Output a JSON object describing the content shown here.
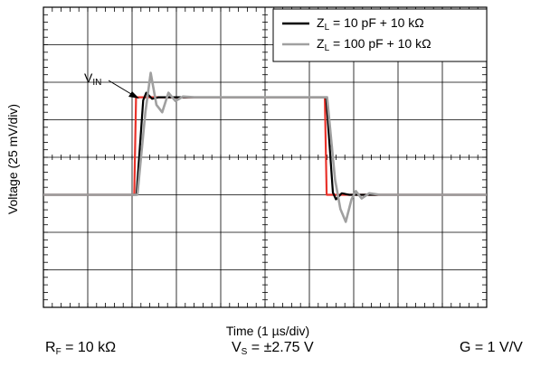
{
  "labels": {
    "ylabel": "Voltage (25 mV/div)",
    "xlabel": "Time (1 µs/div)",
    "rf": {
      "sym": "R",
      "sub": "F",
      "rest": " = 10 kΩ"
    },
    "vs": {
      "sym": "V",
      "sub": "S",
      "rest": " = ±2.75 V"
    },
    "g": "G = 1 V/V",
    "vin": {
      "sym": "V",
      "sub": "IN"
    },
    "legend": [
      {
        "sym": "Z",
        "sub": "L",
        "rest": " = 10 pF + 10 kΩ"
      },
      {
        "sym": "Z",
        "sub": "L",
        "rest": " = 100 pF + 10 kΩ"
      }
    ]
  },
  "chart_data": {
    "type": "line",
    "title": "",
    "xlabel": "Time (1 µs/div)",
    "ylabel": "Voltage (25 mV/div)",
    "xlim": [
      0,
      10
    ],
    "ylim": [
      -4,
      4
    ],
    "grid": true,
    "legend_position": "top-right",
    "series": [
      {
        "name": "VIN",
        "color": "#e8322a",
        "points": [
          [
            0,
            -1
          ],
          [
            2.05,
            -1
          ],
          [
            2.09,
            1.6
          ],
          [
            6.35,
            1.6
          ],
          [
            6.39,
            -1
          ],
          [
            10,
            -1
          ]
        ]
      },
      {
        "name": "ZL = 10 pF + 10 kΩ",
        "color": "#000000",
        "points": [
          [
            0,
            -1
          ],
          [
            2.1,
            -1
          ],
          [
            2.25,
            1.52
          ],
          [
            2.32,
            1.72
          ],
          [
            2.45,
            1.56
          ],
          [
            2.6,
            1.6
          ],
          [
            2.8,
            1.6
          ],
          [
            6.38,
            1.6
          ],
          [
            6.53,
            -0.94
          ],
          [
            6.6,
            -1.12
          ],
          [
            6.73,
            -0.96
          ],
          [
            6.9,
            -1.0
          ],
          [
            10,
            -1
          ]
        ]
      },
      {
        "name": "ZL = 100 pF + 10 kΩ",
        "color": "#a0a0a0",
        "points": [
          [
            0,
            -1
          ],
          [
            2.12,
            -1
          ],
          [
            2.3,
            1.2
          ],
          [
            2.42,
            2.25
          ],
          [
            2.55,
            1.4
          ],
          [
            2.68,
            1.2
          ],
          [
            2.82,
            1.72
          ],
          [
            2.98,
            1.5
          ],
          [
            3.15,
            1.62
          ],
          [
            3.4,
            1.6
          ],
          [
            6.4,
            1.6
          ],
          [
            6.58,
            -0.6
          ],
          [
            6.7,
            -1.38
          ],
          [
            6.82,
            -1.72
          ],
          [
            6.95,
            -1.12
          ],
          [
            7.05,
            -0.9
          ],
          [
            7.18,
            -1.1
          ],
          [
            7.35,
            -0.96
          ],
          [
            7.6,
            -1.0
          ],
          [
            10,
            -1
          ]
        ]
      }
    ]
  }
}
